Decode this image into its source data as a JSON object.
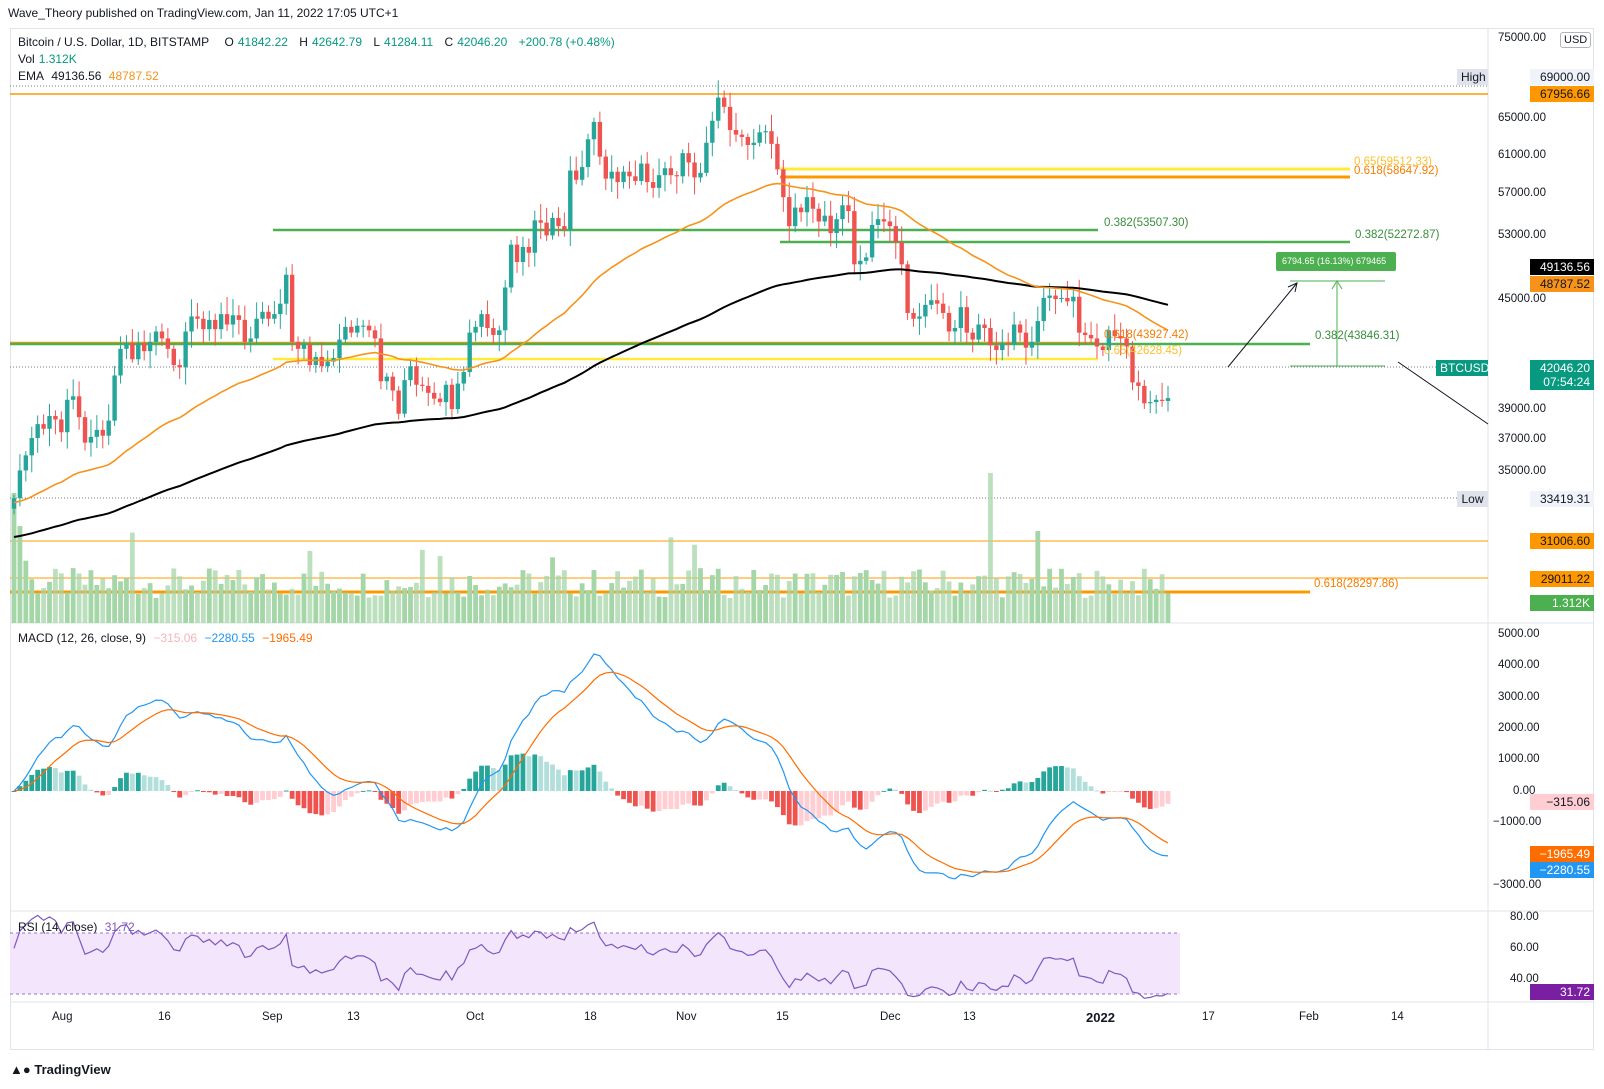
{
  "header": {
    "publisher": "Wave_Theory published on TradingView.com, Jan 11, 2022 17:05 UTC+1"
  },
  "legend": {
    "symbol": "Bitcoin / U.S. Dollar, 1D, BITSTAMP",
    "o_label": "O",
    "o_val": "41842.22",
    "h_label": "H",
    "h_val": "42642.79",
    "l_label": "L",
    "l_val": "41284.11",
    "c_label": "C",
    "c_val": "42046.20",
    "change": "+200.78 (+0.48%)",
    "vol_label": "Vol",
    "vol_val": "1.312K",
    "ema_label": "EMA",
    "ema_val1": "49136.56",
    "ema_val2": "48787.52",
    "macd_label": "MACD (12, 26, close, 9)",
    "macd_hist": "−315.06",
    "macd_line": "−2280.55",
    "macd_signal": "−1965.49",
    "rsi_label": "RSI (14, close)",
    "rsi_val": "31.72"
  },
  "axis": {
    "currency": "USD",
    "price_ticks": [
      "75000.00",
      "69000.00",
      "65000.00",
      "61000.00",
      "57000.00",
      "53000.00",
      "45000.00",
      "39000.00",
      "37000.00",
      "35000.00",
      "31006.60",
      "29011.22"
    ],
    "macd_ticks": [
      "5000.00",
      "4000.00",
      "3000.00",
      "2000.00",
      "1000.00",
      "0.00",
      "−1000.00",
      "−3000.00"
    ],
    "rsi_ticks": [
      "80.00",
      "60.00",
      "40.00"
    ],
    "date_ticks": [
      "Aug",
      "16",
      "Sep",
      "13",
      "Oct",
      "18",
      "Nov",
      "15",
      "Dec",
      "13",
      "2022",
      "17",
      "Feb",
      "14"
    ]
  },
  "tags": {
    "high_label": "High",
    "high_val": "69000.00",
    "level_67956": "67956.66",
    "ema_black": "49136.56",
    "ema_orange": "48787.52",
    "btcusd_label": "BTCUSD",
    "price": "42046.20",
    "countdown": "07:54:24",
    "low_label": "Low",
    "low_val": "33419.31",
    "vol_tag": "1.312K",
    "macd_hist_tag": "−315.06",
    "macd_signal_tag": "−1965.49",
    "macd_line_tag": "−2280.55",
    "rsi_tag": "31.72"
  },
  "annotations": {
    "fib_065_top": "0.65(59512.33)",
    "fib_0618_top": "0.618(58647.92)",
    "fib_0382_a": "0.382(53507.30)",
    "fib_0382_b": "0.382(52272.87)",
    "measure": "6794.65 (16.13%) 679465",
    "fib_0618_mid": "0.618(43927.42)",
    "fib_0382_mid": "0.382(43846.31)",
    "fib_065_mid": "0.65(42628.45)",
    "fib_0618_low": "0.618(28297.86)"
  },
  "colors": {
    "up": "#26a69a",
    "down": "#ef5350",
    "ema_fast": "#f7931a",
    "ema_slow": "#000000",
    "green_level": "#4caf50",
    "yellow_level": "#ffeb3b",
    "orange_level": "#ff9800",
    "macd": "#2196f3",
    "signal": "#ff6d00",
    "rsi": "#7e57c2"
  },
  "footer": {
    "brand": "TradingView"
  },
  "chart_data": {
    "type": "candlestick",
    "price_range": [
      33000,
      75000
    ],
    "closes": [
      33400,
      35800,
      37100,
      38600,
      39800,
      39400,
      40500,
      40200,
      39100,
      41900,
      42200,
      40400,
      38200,
      38700,
      39300,
      38800,
      40100,
      44000,
      46300,
      46800,
      45400,
      46800,
      46100,
      46900,
      47800,
      47200,
      46300,
      44900,
      44700,
      47800,
      49100,
      48900,
      48000,
      48800,
      48000,
      49300,
      48400,
      49200,
      48800,
      46900,
      47200,
      48900,
      49500,
      48900,
      49300,
      50200,
      52700,
      46900,
      46300,
      46700,
      44900,
      45600,
      44800,
      45200,
      45500,
      47100,
      48200,
      47700,
      48300,
      48300,
      47900,
      47200,
      43500,
      43900,
      42700,
      40700,
      43600,
      44800,
      43200,
      43100,
      42500,
      42000,
      41700,
      43200,
      41100,
      43300,
      44300,
      47700,
      48200,
      49300,
      48100,
      47500,
      47900,
      51600,
      55300,
      53800,
      55100,
      54600,
      57400,
      57200,
      56100,
      57600,
      56900,
      56600,
      61700,
      60900,
      62000,
      64400,
      65900,
      62900,
      61000,
      61600,
      60700,
      61600,
      61200,
      60800,
      62300,
      60700,
      60200,
      61300,
      61900,
      61300,
      61200,
      63200,
      62400,
      61100,
      61500,
      64100,
      66000,
      68000,
      67200,
      65200,
      64800,
      64600,
      63900,
      64100,
      65000,
      65100,
      64000,
      61800,
      59400,
      56900,
      58500,
      58100,
      59400,
      58400,
      57300,
      57800,
      56300,
      57500,
      58700,
      58200,
      53600,
      53900,
      54200,
      57000,
      57500,
      57300,
      56900,
      55500,
      53600,
      49400,
      48900,
      49100,
      50100,
      50500,
      50200,
      49400,
      47800,
      48100,
      49900,
      47700,
      47100,
      48400,
      48100,
      46600,
      46200,
      46800,
      46700,
      48400,
      47700,
      46400,
      46900,
      48700,
      50700,
      50900,
      50600,
      50700,
      50400,
      50800,
      47700,
      47500,
      47200,
      46500,
      46200,
      47900,
      47400,
      47200,
      46500,
      43400,
      43100,
      41600,
      41700,
      41900,
      41800,
      42046
    ],
    "volume_peak_label": "1.312K",
    "macd_range": [
      -3300,
      5300
    ],
    "rsi_range": [
      25,
      85
    ],
    "ema_black": "49136.56",
    "ema_orange": "48787.52"
  }
}
